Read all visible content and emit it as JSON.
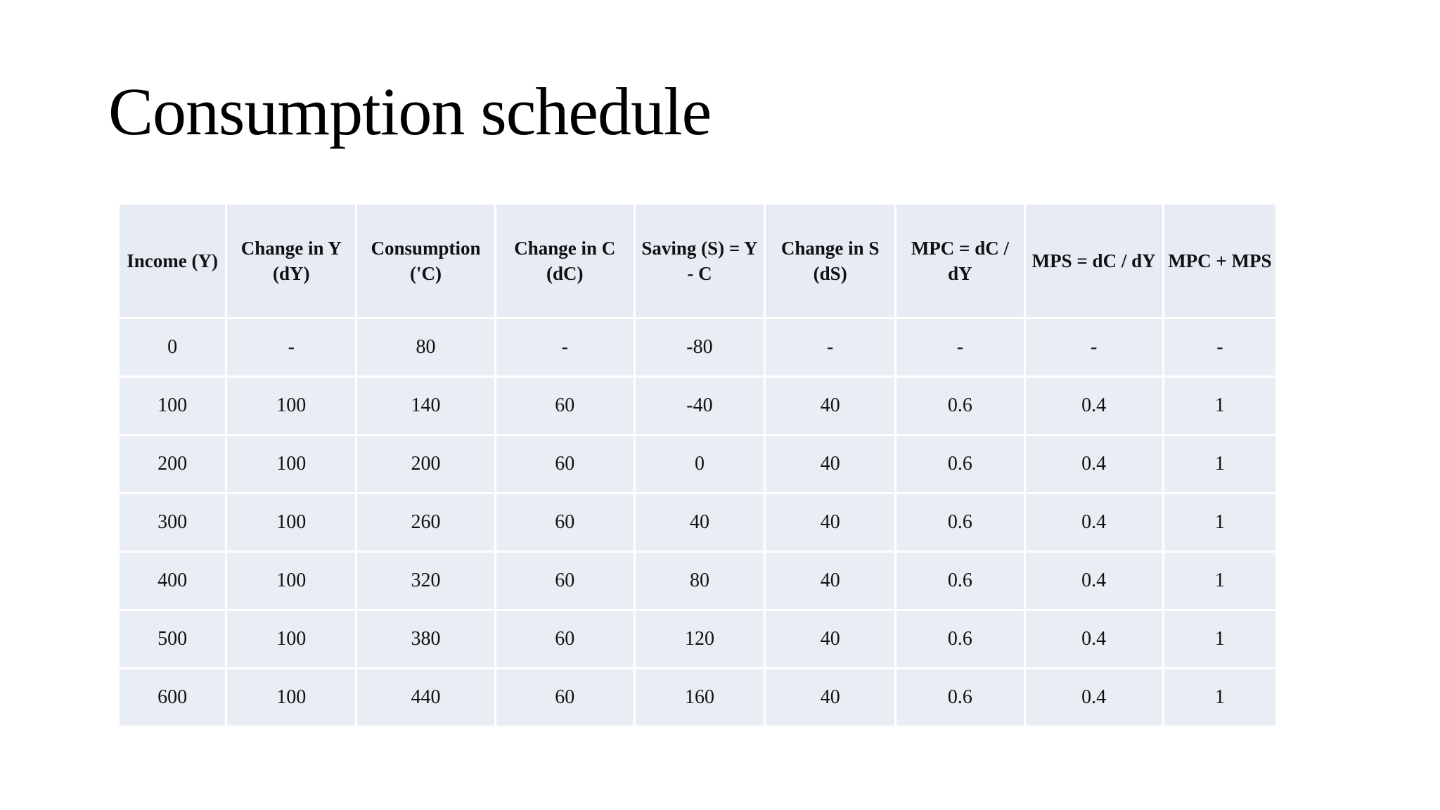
{
  "slide": {
    "title": "Consumption schedule"
  },
  "table": {
    "columns": [
      "Income (Y)",
      "Change in Y (dY)",
      "Consumption ('C)",
      "Change in C (dC)",
      "Saving (S) = Y - C",
      "Change in S (dS)",
      "MPC = dC / dY",
      "MPS = dC / dY",
      "MPC + MPS"
    ],
    "rows": [
      [
        "0",
        "-",
        "80",
        "-",
        "-80",
        "-",
        "-",
        "-",
        "-"
      ],
      [
        "100",
        "100",
        "140",
        "60",
        "-40",
        "40",
        "0.6",
        "0.4",
        "1"
      ],
      [
        "200",
        "100",
        "200",
        "60",
        "0",
        "40",
        "0.6",
        "0.4",
        "1"
      ],
      [
        "300",
        "100",
        "260",
        "60",
        "40",
        "40",
        "0.6",
        "0.4",
        "1"
      ],
      [
        "400",
        "100",
        "320",
        "60",
        "80",
        "40",
        "0.6",
        "0.4",
        "1"
      ],
      [
        "500",
        "100",
        "380",
        "60",
        "120",
        "40",
        "0.6",
        "0.4",
        "1"
      ],
      [
        "600",
        "100",
        "440",
        "60",
        "160",
        "40",
        "0.6",
        "0.4",
        "1"
      ]
    ],
    "colors": {
      "cell_fill": "#e9edf4",
      "header_fill": "#e7ecf4",
      "gap": "#ffffff",
      "text": "#111111",
      "title": "#000000"
    }
  },
  "chart_data": {
    "type": "table",
    "title": "Consumption schedule",
    "categories": [
      "Income (Y)",
      "Change in Y (dY)",
      "Consumption ('C)",
      "Change in C (dC)",
      "Saving (S) = Y - C",
      "Change in S (dS)",
      "MPC = dC / dY",
      "MPS = dC / dY",
      "MPC + MPS"
    ],
    "series": [
      {
        "name": "Income (Y)",
        "values": [
          0,
          100,
          200,
          300,
          400,
          500,
          600
        ]
      },
      {
        "name": "Change in Y (dY)",
        "values": [
          null,
          100,
          100,
          100,
          100,
          100,
          100
        ]
      },
      {
        "name": "Consumption ('C)",
        "values": [
          80,
          140,
          200,
          260,
          320,
          380,
          440
        ]
      },
      {
        "name": "Change in C (dC)",
        "values": [
          null,
          60,
          60,
          60,
          60,
          60,
          60
        ]
      },
      {
        "name": "Saving (S) = Y - C",
        "values": [
          -80,
          -40,
          0,
          40,
          80,
          120,
          160
        ]
      },
      {
        "name": "Change in S (dS)",
        "values": [
          null,
          40,
          40,
          40,
          40,
          40,
          40
        ]
      },
      {
        "name": "MPC = dC / dY",
        "values": [
          null,
          0.6,
          0.6,
          0.6,
          0.6,
          0.6,
          0.6
        ]
      },
      {
        "name": "MPS = dC / dY",
        "values": [
          null,
          0.4,
          0.4,
          0.4,
          0.4,
          0.4,
          0.4
        ]
      },
      {
        "name": "MPC + MPS",
        "values": [
          null,
          1,
          1,
          1,
          1,
          1,
          1
        ]
      }
    ]
  }
}
